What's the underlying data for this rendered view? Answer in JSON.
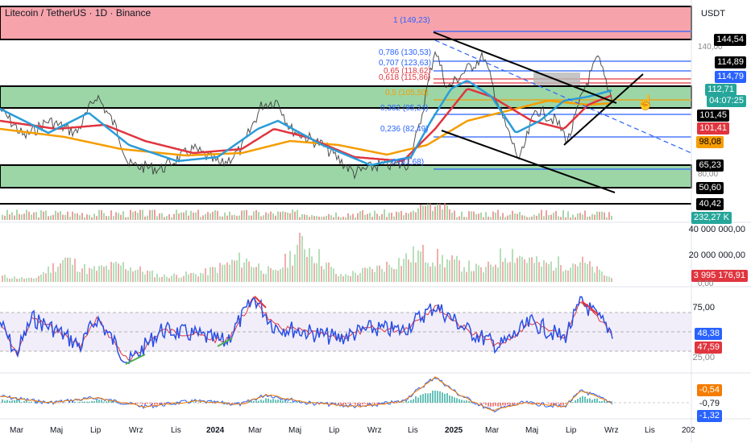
{
  "header": {
    "title": "Litecoin / TetherUS · 1D · Binance",
    "currency": "USDT"
  },
  "colors": {
    "red_zone": "#f7a3ab",
    "green_zone": "#9cd6a7",
    "ma_blue": "#2b9cd8",
    "ma_red": "#e0353f",
    "ma_orange": "#f59d00",
    "fib_blue": "#2962ff",
    "rsi_line": "#2950e6",
    "accent_teal": "#26a69a"
  },
  "price_axis": {
    "levels": [
      {
        "id": "l144",
        "text": "144,54",
        "bg": "#000000",
        "fg": "#ffffff"
      },
      {
        "id": "l114a",
        "text": "114,89",
        "bg": "#000000",
        "fg": "#ffffff"
      },
      {
        "id": "l114b",
        "text": "114,79",
        "bg": "#2962ff",
        "fg": "#ffffff"
      },
      {
        "id": "l112",
        "text": "112,71",
        "bg": "#26a69a",
        "fg": "#ffffff"
      },
      {
        "id": "timer",
        "text": "04:07:25",
        "bg": "#26a69a",
        "fg": "#ffffff"
      },
      {
        "id": "l101a",
        "text": "101,45",
        "bg": "#000000",
        "fg": "#ffffff"
      },
      {
        "id": "l101b",
        "text": "101,41",
        "bg": "#e0353f",
        "fg": "#ffffff"
      },
      {
        "id": "l98",
        "text": "98,08",
        "bg": "#f59d00",
        "fg": "#000000"
      },
      {
        "id": "l65",
        "text": "65,23",
        "bg": "#000000",
        "fg": "#ffffff"
      },
      {
        "id": "l50",
        "text": "50,60",
        "bg": "#000000",
        "fg": "#ffffff"
      },
      {
        "id": "l40",
        "text": "40,42",
        "bg": "#000000",
        "fg": "#ffffff"
      },
      {
        "id": "vol",
        "text": "232,27 K",
        "bg": "#26a69a",
        "fg": "#ffffff"
      }
    ],
    "grid_labels": [
      "140,00",
      "80,00"
    ]
  },
  "fib": {
    "levels": [
      {
        "label": "1 (149,23)",
        "color": "#2962ff"
      },
      {
        "label": "0,786 (130,53)",
        "color": "#2962ff"
      },
      {
        "label": "0,707 (123,63)",
        "color": "#2962ff"
      },
      {
        "label": "0,65 (118,62)",
        "color": "#e0353f"
      },
      {
        "label": "0,618 (115,86)",
        "color": "#e0353f"
      },
      {
        "label": "0,5 (105,50)",
        "color": "#f59d00"
      },
      {
        "label": "0,382 (95,24)",
        "color": "#2962ff"
      },
      {
        "label": "0,236 (82,49)",
        "color": "#2962ff"
      },
      {
        "label": "0 (61,68)",
        "color": "#2962ff"
      }
    ]
  },
  "volume_pane": {
    "labels": [
      "40 000 000,00",
      "20 000 000,00"
    ],
    "last_value": "3 995 176,91",
    "last_bg": "#e0353f",
    "bottom_label": "0,00"
  },
  "rsi_pane": {
    "labels": [
      "75,00",
      "25,00"
    ],
    "value1": "48,38",
    "value1_bg": "#2962ff",
    "value2": "47,59",
    "value2_bg": "#e0353f"
  },
  "macd_pane": {
    "value1": "-0,54",
    "value1_bg": "#f57c00",
    "value2": "-0,79",
    "value3": "-1,32",
    "value3_bg": "#2962ff"
  },
  "time_axis": [
    "Mar",
    "Maj",
    "Lip",
    "Wrz",
    "Lis",
    "2024",
    "Mar",
    "Maj",
    "Lip",
    "Wrz",
    "Lis",
    "2025",
    "Mar",
    "Maj",
    "Lip",
    "Wrz",
    "Lis",
    "202"
  ]
}
